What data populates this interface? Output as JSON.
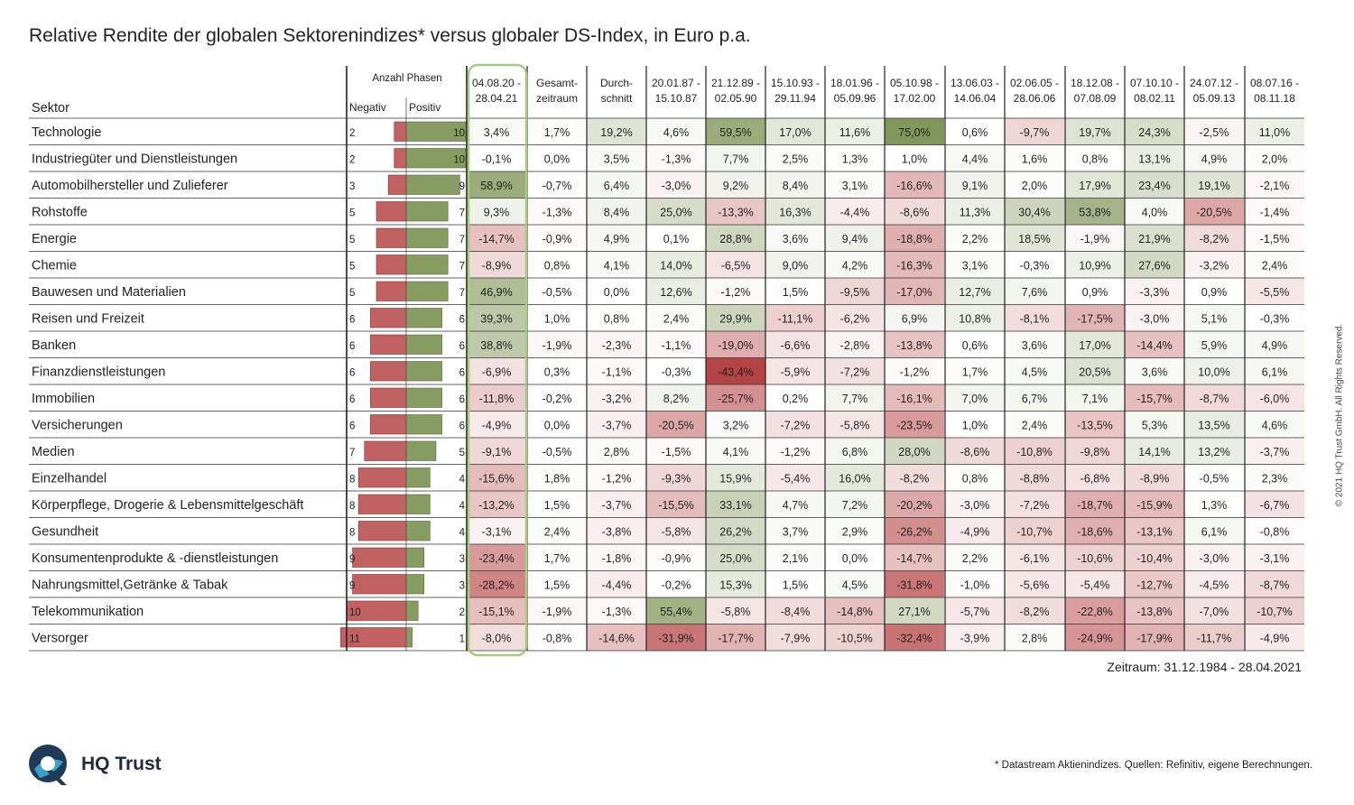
{
  "title": "Relative Rendite der globalen Sektorenindizes* versus globaler DS-Index, in Euro p.a.",
  "copyright": "© 2021 HQ Trust GmbH. All Rights Reserved.",
  "period": "Zeitraum: 31.12.1984 - 28.04.2021",
  "footnote": "* Datastream Aktienindizes. Quellen: Refinitiv, eigene Berechnungen.",
  "logo": {
    "text": "HQ Trust",
    "icon": "hq-trust-logo-icon"
  },
  "colors": {
    "positive": "#7a9150",
    "negative": "#b33a3a",
    "highlight_border": "#a8cb82"
  },
  "chart_data": {
    "type": "table",
    "sector_header": "Sektor",
    "phases_header": "Anzahl Phasen",
    "negative_header": "Negativ",
    "positive_header": "Positiv",
    "columns": [
      [
        "04.08.20 -",
        "28.04.21"
      ],
      [
        "Gesamt-",
        "zeitraum"
      ],
      [
        "Durch-",
        "schnitt"
      ],
      [
        "20.01.87 -",
        "15.10.87"
      ],
      [
        "21.12.89 -",
        "02.05.90"
      ],
      [
        "15.10.93 -",
        "29.11.94"
      ],
      [
        "18.01.96 -",
        "05.09.96"
      ],
      [
        "05.10.98 -",
        "17.02.00"
      ],
      [
        "13.06.03 -",
        "14.06.04"
      ],
      [
        "02.06.05 -",
        "28.06.06"
      ],
      [
        "18.12.08 -",
        "07.08.09"
      ],
      [
        "07.10.10 -",
        "08.02.11"
      ],
      [
        "24.07.12 -",
        "05.09.13"
      ],
      [
        "08.07.16 -",
        "08.11.18"
      ]
    ],
    "rows": [
      {
        "sector": "Technologie",
        "neg": 2,
        "pos": 10,
        "values": [
          3.4,
          1.7,
          19.2,
          4.6,
          59.5,
          17.0,
          11.6,
          75.0,
          0.6,
          -9.7,
          19.7,
          24.3,
          -2.5,
          11.0
        ]
      },
      {
        "sector": "Industriegüter und Dienstleistungen",
        "neg": 2,
        "pos": 10,
        "values": [
          -0.1,
          0.0,
          3.5,
          -1.3,
          7.7,
          2.5,
          1.3,
          1.0,
          4.4,
          1.6,
          0.8,
          13.1,
          4.9,
          2.0
        ]
      },
      {
        "sector": "Automobilhersteller und Zulieferer",
        "neg": 3,
        "pos": 9,
        "values": [
          58.9,
          -0.7,
          6.4,
          -3.0,
          9.2,
          8.4,
          3.1,
          -16.6,
          9.1,
          2.0,
          17.9,
          23.4,
          19.1,
          -2.1
        ]
      },
      {
        "sector": "Rohstoffe",
        "neg": 5,
        "pos": 7,
        "values": [
          9.3,
          -1.3,
          8.4,
          25.0,
          -13.3,
          16.3,
          -4.4,
          -8.6,
          11.3,
          30.4,
          53.8,
          4.0,
          -20.5,
          -1.4
        ]
      },
      {
        "sector": "Energie",
        "neg": 5,
        "pos": 7,
        "values": [
          -14.7,
          -0.9,
          4.9,
          0.1,
          28.8,
          3.6,
          9.4,
          -18.8,
          2.2,
          18.5,
          -1.9,
          21.9,
          -8.2,
          -1.5
        ]
      },
      {
        "sector": "Chemie",
        "neg": 5,
        "pos": 7,
        "values": [
          -8.9,
          0.8,
          4.1,
          14.0,
          -6.5,
          9.0,
          4.2,
          -16.3,
          3.1,
          -0.3,
          10.9,
          27.6,
          -3.2,
          2.4
        ]
      },
      {
        "sector": "Bauwesen und Materialien",
        "neg": 5,
        "pos": 7,
        "values": [
          46.9,
          -0.5,
          0.0,
          12.6,
          -1.2,
          1.5,
          -9.5,
          -17.0,
          12.7,
          7.6,
          0.9,
          -3.3,
          0.9,
          -5.5
        ]
      },
      {
        "sector": "Reisen und Freizeit",
        "neg": 6,
        "pos": 6,
        "values": [
          39.3,
          1.0,
          0.8,
          2.4,
          29.9,
          -11.1,
          -6.2,
          6.9,
          10.8,
          -8.1,
          -17.5,
          -3.0,
          5.1,
          -0.3
        ]
      },
      {
        "sector": "Banken",
        "neg": 6,
        "pos": 6,
        "values": [
          38.8,
          -1.9,
          -2.3,
          -1.1,
          -19.0,
          -6.6,
          -2.8,
          -13.8,
          0.6,
          3.6,
          17.0,
          -14.4,
          5.9,
          4.9
        ]
      },
      {
        "sector": "Finanzdienstleistungen",
        "neg": 6,
        "pos": 6,
        "values": [
          -6.9,
          0.3,
          -1.1,
          -0.3,
          -43.4,
          -5.9,
          -7.2,
          -1.2,
          1.7,
          4.5,
          20.5,
          3.6,
          10.0,
          6.1
        ]
      },
      {
        "sector": "Immobilien",
        "neg": 6,
        "pos": 6,
        "values": [
          -11.8,
          -0.2,
          -3.2,
          8.2,
          -25.7,
          0.2,
          7.7,
          -16.1,
          7.0,
          6.7,
          7.1,
          -15.7,
          -8.7,
          -6.0
        ]
      },
      {
        "sector": "Versicherungen",
        "neg": 6,
        "pos": 6,
        "values": [
          -4.9,
          0.0,
          -3.7,
          -20.5,
          3.2,
          -7.2,
          -5.8,
          -23.5,
          1.0,
          2.4,
          -13.5,
          5.3,
          13.5,
          4.6
        ]
      },
      {
        "sector": "Medien",
        "neg": 7,
        "pos": 5,
        "values": [
          -9.1,
          -0.5,
          2.8,
          -1.5,
          4.1,
          -1.2,
          6.8,
          28.0,
          -8.6,
          -10.8,
          -9.8,
          14.1,
          13.2,
          -3.7
        ]
      },
      {
        "sector": "Einzelhandel",
        "neg": 8,
        "pos": 4,
        "values": [
          -15.6,
          1.8,
          -1.2,
          -9.3,
          15.9,
          -5.4,
          16.0,
          -8.2,
          0.8,
          -8.8,
          -6.8,
          -8.9,
          -0.5,
          2.3
        ]
      },
      {
        "sector": "Körperpflege, Drogerie & Lebensmittelgeschäft",
        "neg": 8,
        "pos": 4,
        "values": [
          -13.2,
          1.5,
          -3.7,
          -15.5,
          33.1,
          4.7,
          7.2,
          -20.2,
          -3.0,
          -7.2,
          -18.7,
          -15.9,
          1.3,
          -6.7
        ]
      },
      {
        "sector": "Gesundheit",
        "neg": 8,
        "pos": 4,
        "values": [
          -3.1,
          2.4,
          -3.8,
          -5.8,
          26.2,
          3.7,
          2.9,
          -26.2,
          -4.9,
          -10.7,
          -18.6,
          -13.1,
          6.1,
          -0.8
        ]
      },
      {
        "sector": "Konsumentenprodukte & -dienstleistungen",
        "neg": 9,
        "pos": 3,
        "values": [
          -23.4,
          1.7,
          -1.8,
          -0.9,
          25.0,
          2.1,
          0.0,
          -14.7,
          2.2,
          -6.1,
          -10.6,
          -10.4,
          -3.0,
          -3.1
        ]
      },
      {
        "sector": "Nahrungsmittel,Getränke & Tabak",
        "neg": 9,
        "pos": 3,
        "values": [
          -28.2,
          1.5,
          -4.4,
          -0.2,
          15.3,
          1.5,
          4.5,
          -31.8,
          -1.0,
          -5.6,
          -5.4,
          -12.7,
          -4.5,
          -8.7
        ]
      },
      {
        "sector": "Telekommunikation",
        "neg": 10,
        "pos": 2,
        "values": [
          -15.1,
          -1.9,
          -1.3,
          55.4,
          -5.8,
          -8.4,
          -14.8,
          27.1,
          -5.7,
          -8.2,
          -22.8,
          -13.8,
          -7.0,
          -10.7
        ]
      },
      {
        "sector": "Versorger",
        "neg": 11,
        "pos": 1,
        "values": [
          -8.0,
          -0.8,
          -14.6,
          -31.9,
          -17.7,
          -7.9,
          -10.5,
          -32.4,
          -3.9,
          2.8,
          -24.9,
          -17.9,
          -11.7,
          -4.9
        ]
      }
    ]
  }
}
